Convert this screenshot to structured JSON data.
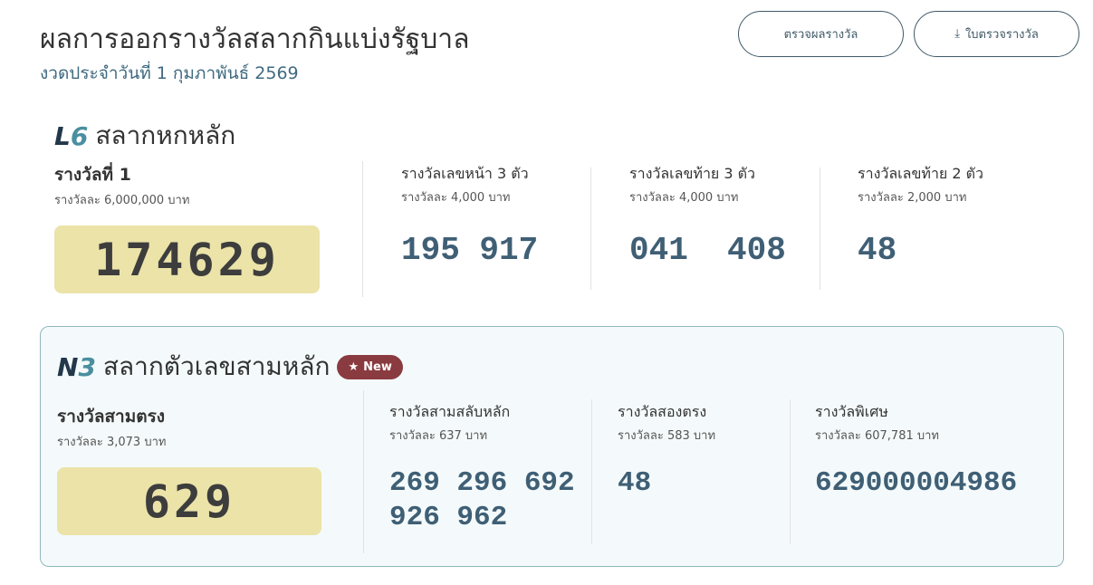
{
  "header": {
    "title": "ผลการออกรางวัลสลากกินแบ่งรัฐบาล",
    "subtitle": "งวดประจำวันที่ 1 กุมภาพันธ์ 2569",
    "check_button": "ตรวจผลรางวัล",
    "download_button": "ใบตรวจรางวัล"
  },
  "six_digit": {
    "logo": "L6",
    "title": "สลากหกหลัก",
    "prizes": [
      {
        "title": "รางวัลที่ 1",
        "amount": "รางวัลละ 6,000,000 บาท",
        "numbers": "174629"
      },
      {
        "title": "รางวัลเลขหน้า 3 ตัว",
        "amount": "รางวัลละ 4,000 บาท",
        "numbers": "195 917"
      },
      {
        "title": "รางวัลเลขท้าย 3 ตัว",
        "amount": "รางวัลละ 4,000 บาท",
        "numbers": "041  408"
      },
      {
        "title": "รางวัลเลขท้าย 2 ตัว",
        "amount": "รางวัลละ 2,000 บาท",
        "numbers": "48"
      }
    ]
  },
  "three_digit": {
    "logo": "N3",
    "title": "สลากตัวเลขสามหลัก",
    "badge": "New",
    "prizes": [
      {
        "title": "รางวัลสามตรง",
        "amount": "รางวัลละ 3,073 บาท",
        "numbers": "629"
      },
      {
        "title": "รางวัลสามสลับหลัก",
        "amount": "รางวัลละ 637 บาท",
        "numbers": "269 296 692",
        "numbers2": "926 962"
      },
      {
        "title": "รางวัลสองตรง",
        "amount": "รางวัลละ 583 บาท",
        "numbers": "48"
      },
      {
        "title": "รางวัลพิเศษ",
        "amount": "รางวัลละ 607,781 บาท",
        "numbers": "629000004986"
      }
    ]
  }
}
